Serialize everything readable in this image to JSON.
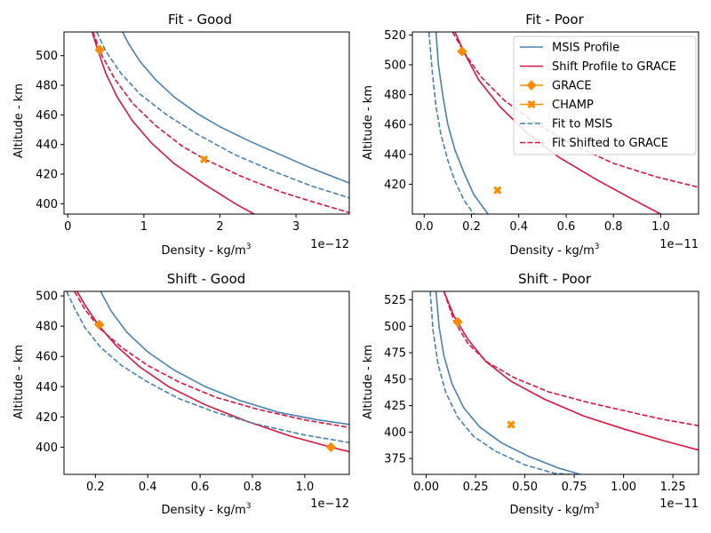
{
  "colors": {
    "msis": "#4682b4",
    "shift": "#dc143c",
    "marker": "#ff8c00"
  },
  "legend": {
    "placement": "top-right",
    "entries": [
      {
        "label": "MSIS Profile",
        "color": "#4682b4",
        "dash": false,
        "marker": "none"
      },
      {
        "label": "Shift Profile to GRACE",
        "color": "#dc143c",
        "dash": false,
        "marker": "none"
      },
      {
        "label": "GRACE",
        "color": "#ff8c00",
        "dash": false,
        "marker": "diamond"
      },
      {
        "label": "CHAMP",
        "color": "#ff8c00",
        "dash": false,
        "marker": "x"
      },
      {
        "label": "Fit to MSIS",
        "color": "#4682b4",
        "dash": true,
        "marker": "none"
      },
      {
        "label": "Fit Shifted to GRACE",
        "color": "#dc143c",
        "dash": true,
        "marker": "none"
      }
    ]
  },
  "chart_data": [
    {
      "type": "line",
      "title": "Fit - Good",
      "xlabel": "Density - kg/m",
      "xlabel_sup": "3",
      "ylabel": "Altitude - km",
      "offset_text": "1e−12",
      "xlim": [
        -0.05,
        3.7
      ],
      "ylim": [
        393,
        516
      ],
      "xticks": [
        0,
        1,
        2,
        3
      ],
      "yticks": [
        400,
        420,
        440,
        460,
        480,
        500
      ],
      "series": [
        {
          "name": "MSIS Profile",
          "color": "#4682b4",
          "dash": false,
          "x": [
            0.72,
            0.8,
            0.95,
            1.15,
            1.4,
            1.7,
            2.0,
            2.4,
            2.8,
            3.2,
            3.7
          ],
          "y": [
            516,
            508,
            496,
            484,
            472,
            461,
            452,
            442,
            433,
            424,
            414
          ]
        },
        {
          "name": "Shift Profile to GRACE",
          "color": "#dc143c",
          "dash": false,
          "x": [
            0.32,
            0.4,
            0.5,
            0.65,
            0.85,
            1.1,
            1.4,
            1.8,
            2.2,
            2.45
          ],
          "y": [
            516,
            503,
            488,
            472,
            456,
            441,
            427,
            413,
            400,
            393
          ]
        },
        {
          "name": "Fit to MSIS",
          "color": "#4682b4",
          "dash": true,
          "x": [
            0.38,
            0.5,
            0.7,
            0.95,
            1.3,
            1.7,
            2.2,
            2.7,
            3.2,
            3.7
          ],
          "y": [
            516,
            503,
            488,
            474,
            460,
            447,
            433,
            422,
            412,
            404
          ]
        },
        {
          "name": "Fit Shifted to GRACE",
          "color": "#dc143c",
          "dash": true,
          "x": [
            0.33,
            0.45,
            0.62,
            0.85,
            1.15,
            1.5,
            1.8,
            2.3,
            2.8,
            3.3,
            3.7
          ],
          "y": [
            516,
            500,
            484,
            468,
            453,
            439,
            430,
            418,
            408,
            400,
            394
          ]
        }
      ],
      "points": [
        {
          "name": "GRACE",
          "marker": "diamond",
          "x": 0.42,
          "y": 504
        },
        {
          "name": "CHAMP",
          "marker": "x",
          "x": 1.79,
          "y": 430
        }
      ]
    },
    {
      "type": "line",
      "title": "Fit - Poor",
      "xlabel": "Density - kg/m",
      "xlabel_sup": "3",
      "ylabel": "Altitude - km",
      "offset_text": "1e−11",
      "xlim": [
        -0.05,
        1.16
      ],
      "ylim": [
        400,
        522
      ],
      "xticks": [
        0.0,
        0.2,
        0.4,
        0.6,
        0.8,
        1.0
      ],
      "xtick_labels": [
        "0.0",
        "0.2",
        "0.4",
        "0.6",
        "0.8",
        "1.0"
      ],
      "yticks": [
        420,
        440,
        460,
        480,
        500,
        520
      ],
      "series": [
        {
          "name": "MSIS Profile",
          "color": "#4682b4",
          "dash": false,
          "x": [
            0.05,
            0.06,
            0.08,
            0.1,
            0.13,
            0.17,
            0.21,
            0.27
          ],
          "y": [
            522,
            500,
            478,
            460,
            443,
            427,
            413,
            400
          ]
        },
        {
          "name": "Shift Profile to GRACE",
          "color": "#dc143c",
          "dash": false,
          "x": [
            0.13,
            0.17,
            0.23,
            0.32,
            0.43,
            0.57,
            0.73,
            0.88,
            1.0
          ],
          "y": [
            522,
            508,
            490,
            472,
            455,
            438,
            423,
            410,
            400
          ]
        },
        {
          "name": "Fit to MSIS",
          "color": "#4682b4",
          "dash": true,
          "x": [
            0.02,
            0.035,
            0.05,
            0.07,
            0.1,
            0.13,
            0.17,
            0.21
          ],
          "y": [
            522,
            494,
            472,
            454,
            436,
            422,
            409,
            400
          ]
        },
        {
          "name": "Fit Shifted to GRACE",
          "color": "#dc143c",
          "dash": true,
          "x": [
            0.12,
            0.17,
            0.24,
            0.34,
            0.47,
            0.62,
            0.8,
            0.98,
            1.16
          ],
          "y": [
            522,
            508,
            492,
            476,
            461,
            447,
            434,
            425,
            418
          ]
        }
      ],
      "points": [
        {
          "name": "GRACE",
          "marker": "diamond",
          "x": 0.16,
          "y": 509
        },
        {
          "name": "CHAMP",
          "marker": "x",
          "x": 0.31,
          "y": 416
        }
      ]
    },
    {
      "type": "line",
      "title": "Shift - Good",
      "xlabel": "Density - kg/m",
      "xlabel_sup": "3",
      "ylabel": "Altitude - km",
      "offset_text": "1e−12",
      "xlim": [
        0.08,
        1.17
      ],
      "ylim": [
        382,
        503
      ],
      "xticks": [
        0.2,
        0.4,
        0.6,
        0.8,
        1.0
      ],
      "xtick_labels": [
        "0.2",
        "0.4",
        "0.6",
        "0.8",
        "1.0"
      ],
      "yticks": [
        400,
        420,
        440,
        460,
        480,
        500
      ],
      "series": [
        {
          "name": "MSIS Profile",
          "color": "#4682b4",
          "dash": false,
          "x": [
            0.22,
            0.26,
            0.32,
            0.4,
            0.5,
            0.62,
            0.75,
            0.9,
            1.05,
            1.17
          ],
          "y": [
            503,
            490,
            476,
            463,
            451,
            440,
            431,
            423,
            418,
            415
          ]
        },
        {
          "name": "Shift Profile to GRACE",
          "color": "#dc143c",
          "dash": false,
          "x": [
            0.13,
            0.16,
            0.21,
            0.28,
            0.37,
            0.48,
            0.62,
            0.78,
            0.95,
            1.1,
            1.17
          ],
          "y": [
            503,
            494,
            481,
            467,
            453,
            440,
            428,
            417,
            407,
            400,
            397
          ]
        },
        {
          "name": "Fit to MSIS",
          "color": "#4682b4",
          "dash": true,
          "x": [
            0.09,
            0.12,
            0.16,
            0.22,
            0.3,
            0.4,
            0.52,
            0.66,
            0.82,
            1.0,
            1.17
          ],
          "y": [
            503,
            492,
            479,
            466,
            454,
            443,
            432,
            423,
            415,
            408,
            403
          ]
        },
        {
          "name": "Fit Shifted to GRACE",
          "color": "#dc143c",
          "dash": true,
          "x": [
            0.12,
            0.16,
            0.22,
            0.3,
            0.4,
            0.52,
            0.66,
            0.82,
            1.0,
            1.17
          ],
          "y": [
            503,
            491,
            478,
            466,
            454,
            443,
            433,
            425,
            418,
            413
          ]
        }
      ],
      "points": [
        {
          "name": "GRACE",
          "marker": "diamond",
          "x": 0.215,
          "y": 481
        },
        {
          "name": "GRACE",
          "marker": "diamond",
          "x": 1.1,
          "y": 400
        }
      ]
    },
    {
      "type": "line",
      "title": "Shift - Poor",
      "xlabel": "Density - kg/m",
      "xlabel_sup": "3",
      "ylabel": "Altitude - km",
      "offset_text": "1e−11",
      "xlim": [
        -0.07,
        1.38
      ],
      "ylim": [
        360,
        533
      ],
      "xticks": [
        0.0,
        0.25,
        0.5,
        0.75,
        1.0,
        1.25
      ],
      "xtick_labels": [
        "0.00",
        "0.25",
        "0.50",
        "0.75",
        "1.00",
        "1.25"
      ],
      "yticks": [
        375,
        400,
        425,
        450,
        475,
        500,
        525
      ],
      "series": [
        {
          "name": "MSIS Profile",
          "color": "#4682b4",
          "dash": false,
          "x": [
            0.05,
            0.065,
            0.09,
            0.13,
            0.19,
            0.27,
            0.38,
            0.52,
            0.67,
            0.78
          ],
          "y": [
            533,
            500,
            472,
            446,
            423,
            405,
            390,
            377,
            366,
            360
          ]
        },
        {
          "name": "Shift Profile to GRACE",
          "color": "#dc143c",
          "dash": false,
          "x": [
            0.09,
            0.14,
            0.21,
            0.3,
            0.43,
            0.6,
            0.8,
            1.0,
            1.2,
            1.38
          ],
          "y": [
            533,
            510,
            488,
            467,
            448,
            431,
            415,
            403,
            392,
            383
          ]
        },
        {
          "name": "Fit to MSIS",
          "color": "#4682b4",
          "dash": true,
          "x": [
            0.02,
            0.035,
            0.06,
            0.1,
            0.16,
            0.24,
            0.35,
            0.5,
            0.65,
            0.73
          ],
          "y": [
            533,
            496,
            464,
            437,
            414,
            396,
            382,
            369,
            361,
            360
          ]
        },
        {
          "name": "Fit Shifted to GRACE",
          "color": "#dc143c",
          "dash": true,
          "x": [
            0.09,
            0.14,
            0.21,
            0.31,
            0.45,
            0.62,
            0.82,
            1.03,
            1.2,
            1.38
          ],
          "y": [
            533,
            506,
            484,
            466,
            451,
            438,
            428,
            419,
            412,
            406
          ]
        }
      ],
      "points": [
        {
          "name": "GRACE",
          "marker": "diamond",
          "x": 0.16,
          "y": 504
        },
        {
          "name": "CHAMP",
          "marker": "x",
          "x": 0.43,
          "y": 407
        }
      ]
    }
  ]
}
